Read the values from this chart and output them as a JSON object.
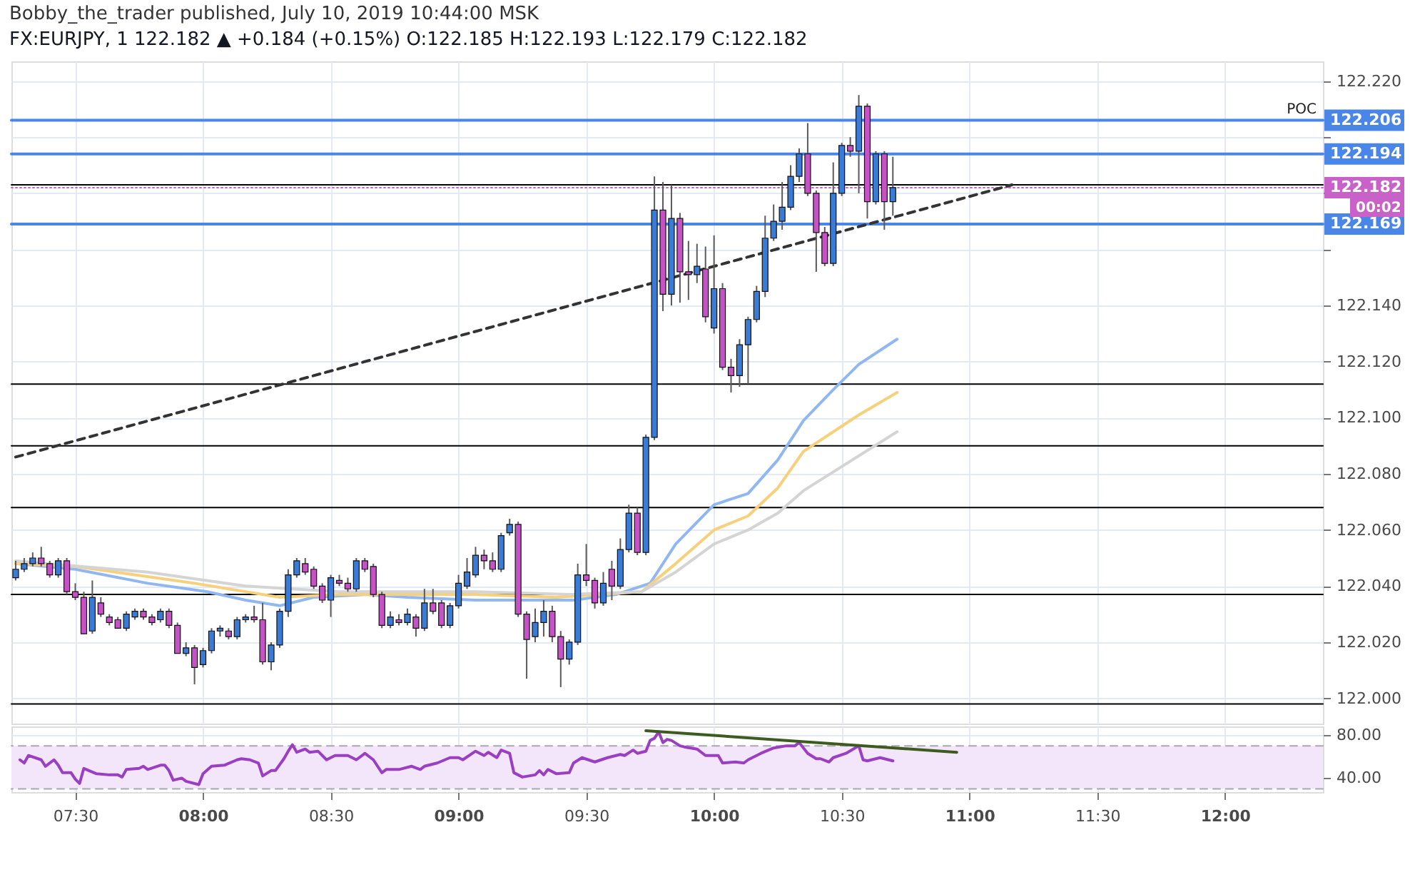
{
  "chart_data": [
    {
      "type": "candlestick",
      "title": "Bobby_the_trader published, July 10, 2019 10:44:00 MSK",
      "subtitle": "FX:EURJPY, 1  122.182 ▲ +0.184 (+0.15%) O:122.185 H:122.193 L:122.179 C:122.182",
      "x": [
        "2019-07-10T07:16",
        "2019-07-10T07:18",
        "2019-07-10T07:20",
        "2019-07-10T07:22",
        "2019-07-10T07:24",
        "2019-07-10T07:26",
        "2019-07-10T07:28",
        "2019-07-10T07:30",
        "2019-07-10T07:32",
        "2019-07-10T07:34",
        "2019-07-10T07:36",
        "2019-07-10T07:38",
        "2019-07-10T07:40",
        "2019-07-10T07:42",
        "2019-07-10T07:44",
        "2019-07-10T07:46",
        "2019-07-10T07:48",
        "2019-07-10T07:50",
        "2019-07-10T07:52",
        "2019-07-10T07:54",
        "2019-07-10T07:56",
        "2019-07-10T07:58",
        "2019-07-10T08:00",
        "2019-07-10T08:02",
        "2019-07-10T08:04",
        "2019-07-10T08:06",
        "2019-07-10T08:08",
        "2019-07-10T08:10",
        "2019-07-10T08:12",
        "2019-07-10T08:14",
        "2019-07-10T08:16",
        "2019-07-10T08:18",
        "2019-07-10T08:20",
        "2019-07-10T08:22",
        "2019-07-10T08:24",
        "2019-07-10T08:26",
        "2019-07-10T08:28",
        "2019-07-10T08:30",
        "2019-07-10T08:32",
        "2019-07-10T08:34",
        "2019-07-10T08:36",
        "2019-07-10T08:38",
        "2019-07-10T08:40",
        "2019-07-10T08:42",
        "2019-07-10T08:44",
        "2019-07-10T08:46",
        "2019-07-10T08:48",
        "2019-07-10T08:50",
        "2019-07-10T08:52",
        "2019-07-10T08:54",
        "2019-07-10T08:56",
        "2019-07-10T08:58",
        "2019-07-10T09:00",
        "2019-07-10T09:02",
        "2019-07-10T09:04",
        "2019-07-10T09:06",
        "2019-07-10T09:08",
        "2019-07-10T09:10",
        "2019-07-10T09:12",
        "2019-07-10T09:14",
        "2019-07-10T09:16",
        "2019-07-10T09:18",
        "2019-07-10T09:20",
        "2019-07-10T09:22",
        "2019-07-10T09:24",
        "2019-07-10T09:26",
        "2019-07-10T09:28",
        "2019-07-10T09:30",
        "2019-07-10T09:32",
        "2019-07-10T09:34",
        "2019-07-10T09:36",
        "2019-07-10T09:38",
        "2019-07-10T09:40",
        "2019-07-10T09:42",
        "2019-07-10T09:44",
        "2019-07-10T09:46",
        "2019-07-10T09:48",
        "2019-07-10T09:50",
        "2019-07-10T09:52",
        "2019-07-10T09:54",
        "2019-07-10T09:56",
        "2019-07-10T09:58",
        "2019-07-10T10:00",
        "2019-07-10T10:02",
        "2019-07-10T10:04",
        "2019-07-10T10:06",
        "2019-07-10T10:08",
        "2019-07-10T10:10",
        "2019-07-10T10:12",
        "2019-07-10T10:14",
        "2019-07-10T10:16",
        "2019-07-10T10:18",
        "2019-07-10T10:20",
        "2019-07-10T10:22",
        "2019-07-10T10:24",
        "2019-07-10T10:26",
        "2019-07-10T10:28",
        "2019-07-10T10:30",
        "2019-07-10T10:32",
        "2019-07-10T10:34",
        "2019-07-10T10:36",
        "2019-07-10T10:38",
        "2019-07-10T10:40",
        "2019-07-10T10:42"
      ],
      "ohlc": [
        [
          122.043,
          122.049,
          122.042,
          122.046
        ],
        [
          122.046,
          122.05,
          122.045,
          122.048
        ],
        [
          122.048,
          122.052,
          122.047,
          122.05
        ],
        [
          122.05,
          122.054,
          122.047,
          122.048
        ],
        [
          122.048,
          122.049,
          122.043,
          122.044
        ],
        [
          122.044,
          122.05,
          122.043,
          122.049
        ],
        [
          122.049,
          122.05,
          122.037,
          122.038
        ],
        [
          122.038,
          122.041,
          122.035,
          122.036
        ],
        [
          122.036,
          122.038,
          122.023,
          122.023
        ],
        [
          122.024,
          122.042,
          122.023,
          122.036
        ],
        [
          122.034,
          122.036,
          122.029,
          122.03
        ],
        [
          122.029,
          122.03,
          122.026,
          122.027
        ],
        [
          122.028,
          122.029,
          122.025,
          122.025
        ],
        [
          122.025,
          122.031,
          122.024,
          122.03
        ],
        [
          122.029,
          122.032,
          122.028,
          122.031
        ],
        [
          122.031,
          122.032,
          122.028,
          122.029
        ],
        [
          122.029,
          122.03,
          122.026,
          122.027
        ],
        [
          122.028,
          122.032,
          122.027,
          122.031
        ],
        [
          122.031,
          122.032,
          122.025,
          122.026
        ],
        [
          122.026,
          122.027,
          122.016,
          122.016
        ],
        [
          122.016,
          122.02,
          122.015,
          122.018
        ],
        [
          122.018,
          122.019,
          122.005,
          122.011
        ],
        [
          122.012,
          122.018,
          122.011,
          122.017
        ],
        [
          122.017,
          122.025,
          122.016,
          122.024
        ],
        [
          122.024,
          122.026,
          122.022,
          122.025
        ],
        [
          122.024,
          122.025,
          122.021,
          122.022
        ],
        [
          122.022,
          122.029,
          122.021,
          122.028
        ],
        [
          122.028,
          122.03,
          122.027,
          122.029
        ],
        [
          122.029,
          122.033,
          122.027,
          122.028
        ],
        [
          122.028,
          122.034,
          122.012,
          122.013
        ],
        [
          122.013,
          122.02,
          122.01,
          122.019
        ],
        [
          122.019,
          122.032,
          122.018,
          122.031
        ],
        [
          122.031,
          122.046,
          122.029,
          122.044
        ],
        [
          122.044,
          122.05,
          122.043,
          122.049
        ],
        [
          122.048,
          122.05,
          122.044,
          122.045
        ],
        [
          122.046,
          122.047,
          122.039,
          122.04
        ],
        [
          122.04,
          122.041,
          122.034,
          122.035
        ],
        [
          122.035,
          122.044,
          122.029,
          122.043
        ],
        [
          122.042,
          122.044,
          122.04,
          122.041
        ],
        [
          122.041,
          122.043,
          122.038,
          122.039
        ],
        [
          122.039,
          122.05,
          122.038,
          122.049
        ],
        [
          122.049,
          122.05,
          122.045,
          122.046
        ],
        [
          122.047,
          122.048,
          122.036,
          122.037
        ],
        [
          122.037,
          122.038,
          122.025,
          122.026
        ],
        [
          122.026,
          122.031,
          122.025,
          122.029
        ],
        [
          122.028,
          122.03,
          122.026,
          122.027
        ],
        [
          122.027,
          122.032,
          122.026,
          122.03
        ],
        [
          122.029,
          122.03,
          122.022,
          122.025
        ],
        [
          122.025,
          122.039,
          122.024,
          122.034
        ],
        [
          122.034,
          122.039,
          122.03,
          122.031
        ],
        [
          122.034,
          122.035,
          122.025,
          122.026
        ],
        [
          122.026,
          122.034,
          122.025,
          122.033
        ],
        [
          122.033,
          122.044,
          122.032,
          122.041
        ],
        [
          122.04,
          122.05,
          122.039,
          122.045
        ],
        [
          122.044,
          122.054,
          122.043,
          122.051
        ],
        [
          122.051,
          122.053,
          122.046,
          122.049
        ],
        [
          122.049,
          122.052,
          122.045,
          122.046
        ],
        [
          122.046,
          122.059,
          122.045,
          122.058
        ],
        [
          122.059,
          122.064,
          122.058,
          122.062
        ],
        [
          122.062,
          122.063,
          122.029,
          122.03
        ],
        [
          122.03,
          122.031,
          122.007,
          122.021
        ],
        [
          122.022,
          122.032,
          122.02,
          122.027
        ],
        [
          122.027,
          122.035,
          122.022,
          122.031
        ],
        [
          122.031,
          122.033,
          122.02,
          122.022
        ],
        [
          122.022,
          122.024,
          122.004,
          122.014
        ],
        [
          122.014,
          122.021,
          122.012,
          122.02
        ],
        [
          122.02,
          122.048,
          122.019,
          122.044
        ],
        [
          122.044,
          122.055,
          122.04,
          122.042
        ],
        [
          122.042,
          122.043,
          122.032,
          122.034
        ],
        [
          122.034,
          122.045,
          122.033,
          122.041
        ],
        [
          122.046,
          122.049,
          122.035,
          122.04
        ],
        [
          122.04,
          122.057,
          122.039,
          122.053
        ],
        [
          122.053,
          122.069,
          122.052,
          122.066
        ],
        [
          122.066,
          122.068,
          122.051,
          122.052
        ],
        [
          122.052,
          122.094,
          122.051,
          122.093
        ],
        [
          122.093,
          122.186,
          122.092,
          122.174
        ],
        [
          122.174,
          122.184,
          122.138,
          122.144
        ],
        [
          122.144,
          122.183,
          122.14,
          122.171
        ],
        [
          122.171,
          122.173,
          122.141,
          122.152
        ],
        [
          122.152,
          122.163,
          122.142,
          122.151
        ],
        [
          122.151,
          122.162,
          122.148,
          122.154
        ],
        [
          122.153,
          122.161,
          122.134,
          122.136
        ],
        [
          122.132,
          122.165,
          122.13,
          122.146
        ],
        [
          122.146,
          122.148,
          122.117,
          122.118
        ],
        [
          122.118,
          122.121,
          122.109,
          122.115
        ],
        [
          122.115,
          122.128,
          122.111,
          122.126
        ],
        [
          122.126,
          122.136,
          122.112,
          122.135
        ],
        [
          122.135,
          122.147,
          122.134,
          122.145
        ],
        [
          122.145,
          122.172,
          122.143,
          122.164
        ],
        [
          122.164,
          122.176,
          122.163,
          122.17
        ],
        [
          122.17,
          122.184,
          122.167,
          122.175
        ],
        [
          122.175,
          122.19,
          122.174,
          122.186
        ],
        [
          122.186,
          122.196,
          122.184,
          122.194
        ],
        [
          122.194,
          122.205,
          122.179,
          122.18
        ],
        [
          122.18,
          122.181,
          122.152,
          122.166
        ],
        [
          122.166,
          122.168,
          122.154,
          122.155
        ],
        [
          122.155,
          122.191,
          122.154,
          122.18
        ],
        [
          122.18,
          122.198,
          122.179,
          122.197
        ],
        [
          122.197,
          122.2,
          122.193,
          122.195
        ],
        [
          122.195,
          122.215,
          122.18,
          122.211
        ],
        [
          122.211,
          122.212,
          122.171,
          122.177
        ],
        [
          122.177,
          122.195,
          122.176,
          122.194
        ],
        [
          122.194,
          122.195,
          122.167,
          122.177
        ],
        [
          122.177,
          122.193,
          122.172,
          122.182
        ]
      ],
      "colors": [
        "#3a7bd5",
        "#3a7bd5",
        "#3a7bd5",
        "#c653c6",
        "#c653c6",
        "#3a7bd5",
        "#c653c6",
        "#c653c6",
        "#c653c6",
        "#3a7bd5",
        "#c653c6",
        "#c653c6",
        "#c653c6",
        "#3a7bd5",
        "#3a7bd5",
        "#c653c6",
        "#c653c6",
        "#3a7bd5",
        "#c653c6",
        "#c653c6",
        "#3a7bd5",
        "#c653c6",
        "#3a7bd5",
        "#3a7bd5",
        "#3a7bd5",
        "#c653c6",
        "#3a7bd5",
        "#3a7bd5",
        "#c653c6",
        "#c653c6",
        "#3a7bd5",
        "#3a7bd5",
        "#3a7bd5",
        "#3a7bd5",
        "#c653c6",
        "#c653c6",
        "#c653c6",
        "#3a7bd5",
        "#c653c6",
        "#c653c6",
        "#3a7bd5",
        "#c653c6",
        "#c653c6",
        "#c653c6",
        "#3a7bd5",
        "#c653c6",
        "#3a7bd5",
        "#c653c6",
        "#3a7bd5",
        "#c653c6",
        "#c653c6",
        "#3a7bd5",
        "#3a7bd5",
        "#3a7bd5",
        "#3a7bd5",
        "#c653c6",
        "#c653c6",
        "#3a7bd5",
        "#3a7bd5",
        "#c653c6",
        "#c653c6",
        "#3a7bd5",
        "#3a7bd5",
        "#c653c6",
        "#c653c6",
        "#3a7bd5",
        "#3a7bd5",
        "#c653c6",
        "#c653c6",
        "#3a7bd5",
        "#c653c6",
        "#3a7bd5",
        "#3a7bd5",
        "#c653c6",
        "#3a7bd5",
        "#3a7bd5",
        "#c653c6",
        "#3a7bd5",
        "#c653c6",
        "#c653c6",
        "#3a7bd5",
        "#c653c6",
        "#3a7bd5",
        "#c653c6",
        "#c653c6",
        "#3a7bd5",
        "#3a7bd5",
        "#3a7bd5",
        "#3a7bd5",
        "#3a7bd5",
        "#3a7bd5",
        "#3a7bd5",
        "#3a7bd5",
        "#c653c6",
        "#c653c6",
        "#c653c6",
        "#3a7bd5",
        "#3a7bd5",
        "#c653c6",
        "#3a7bd5",
        "#c653c6",
        "#3a7bd5",
        "#c653c6",
        "#3a7bd5"
      ],
      "series": [
        {
          "type": "line",
          "color": "#91b7f2",
          "x": [
            "2019-07-10T07:16",
            "2019-07-10T07:30",
            "2019-07-10T07:47",
            "2019-07-10T08:01",
            "2019-07-10T08:10",
            "2019-07-10T08:18",
            "2019-07-10T08:26",
            "2019-07-10T08:38",
            "2019-07-10T08:48",
            "2019-07-10T09:04",
            "2019-07-10T09:27",
            "2019-07-10T09:37",
            "2019-07-10T09:45",
            "2019-07-10T09:51",
            "2019-07-10T10:00",
            "2019-07-10T10:08",
            "2019-07-10T10:15",
            "2019-07-10T10:21",
            "2019-07-10T10:28",
            "2019-07-10T10:34",
            "2019-07-10T10:43"
          ],
          "values": [
            122.048,
            122.046,
            122.041,
            122.038,
            122.035,
            122.033,
            122.036,
            122.037,
            122.036,
            122.035,
            122.035,
            122.037,
            122.041,
            122.055,
            122.069,
            122.073,
            122.085,
            122.099,
            122.11,
            122.119,
            122.128
          ]
        },
        {
          "type": "line",
          "color": "#f6d07a",
          "x": [
            "2019-07-10T07:16",
            "2019-07-10T07:30",
            "2019-07-10T07:58",
            "2019-07-10T08:18",
            "2019-07-10T08:32",
            "2019-07-10T09:04",
            "2019-07-10T09:23",
            "2019-07-10T09:43",
            "2019-07-10T09:51",
            "2019-07-10T10:00",
            "2019-07-10T10:08",
            "2019-07-10T10:15",
            "2019-07-10T10:21",
            "2019-07-10T10:34",
            "2019-07-10T10:43"
          ],
          "values": [
            122.048,
            122.047,
            122.041,
            122.036,
            122.037,
            122.037,
            122.036,
            122.038,
            122.048,
            122.06,
            122.065,
            122.075,
            122.088,
            122.101,
            122.109
          ]
        },
        {
          "type": "line",
          "color": "#d4d4d4",
          "x": [
            "2019-07-10T07:16",
            "2019-07-10T07:47",
            "2019-07-10T08:10",
            "2019-07-10T08:32",
            "2019-07-10T09:04",
            "2019-07-10T09:26",
            "2019-07-10T09:43",
            "2019-07-10T09:51",
            "2019-07-10T10:00",
            "2019-07-10T10:08",
            "2019-07-10T10:15",
            "2019-07-10T10:21",
            "2019-07-10T10:43"
          ],
          "values": [
            122.049,
            122.045,
            122.04,
            122.038,
            122.038,
            122.037,
            122.038,
            122.045,
            122.055,
            122.06,
            122.066,
            122.074,
            122.095
          ]
        },
        {
          "type": "line",
          "color": "#333333",
          "line_style": "dashed",
          "x": [
            "2019-07-10T07:16",
            "2019-07-10T11:10"
          ],
          "values": [
            122.086,
            122.183
          ]
        }
      ],
      "xlim": [
        "2019-07-10T07:15",
        "2019-07-10T12:23"
      ],
      "xticks": [
        {
          "value": "2019-07-10T07:30",
          "label": null
        },
        {
          "value": "2019-07-10T08:00",
          "label": null
        },
        {
          "value": "2019-07-10T08:30",
          "label": null
        },
        {
          "value": "2019-07-10T09:00",
          "label": null
        },
        {
          "value": "2019-07-10T09:30",
          "label": null
        },
        {
          "value": "2019-07-10T10:00",
          "label": null
        },
        {
          "value": "2019-07-10T10:30",
          "label": null
        },
        {
          "value": "2019-07-10T11:00",
          "label": null
        },
        {
          "value": "2019-07-10T11:30",
          "label": null
        },
        {
          "value": "2019-07-10T12:00",
          "label": null
        }
      ],
      "ylim": [
        121.991,
        122.227
      ],
      "yticks": [
        {
          "value": 122.0,
          "label": "122.000"
        },
        {
          "value": 122.02,
          "label": "122.020"
        },
        {
          "value": 122.04,
          "label": "122.040"
        },
        {
          "value": 122.06,
          "label": "122.060"
        },
        {
          "value": 122.08,
          "label": "122.080"
        },
        {
          "value": 122.1,
          "label": "122.100"
        },
        {
          "value": 122.12,
          "label": "122.120"
        },
        {
          "value": 122.14,
          "label": "122.140"
        },
        {
          "value": 122.16,
          "label": null
        },
        {
          "value": 122.18,
          "label": null
        },
        {
          "value": 122.2,
          "label": null
        },
        {
          "value": 122.22,
          "label": "122.220"
        }
      ],
      "ref_lines": [
        {
          "axis": "y",
          "value": 122.183,
          "color": "#000000"
        },
        {
          "axis": "y",
          "value": 122.112,
          "color": "#000000"
        },
        {
          "axis": "y",
          "value": 122.09,
          "color": "#000000"
        },
        {
          "axis": "y",
          "value": 122.068,
          "color": "#000000"
        },
        {
          "axis": "y",
          "value": 122.037,
          "color": "#000000"
        },
        {
          "axis": "y",
          "value": 121.998,
          "color": "#000000"
        },
        {
          "axis": "y",
          "value": 122.206,
          "label": "122.206",
          "color": "#4a86e8"
        },
        {
          "axis": "y",
          "value": 122.194,
          "label": "122.194",
          "color": "#4a86e8"
        },
        {
          "axis": "y",
          "value": 122.169,
          "label": "122.169",
          "color": "#4a86e8"
        },
        {
          "axis": "y",
          "value": 122.182,
          "label": "122.182",
          "color": "#c862c8",
          "line_style": "dotted"
        }
      ],
      "annotations": [
        {
          "text": "POC",
          "x": "2019-07-10T12:18",
          "y": 122.206
        },
        "00:02"
      ],
      "grid": true,
      "tick_labels": "y"
    },
    {
      "type": "line",
      "series": [
        {
          "color": "#9a3fc2",
          "x": [
            "2019-07-10T07:17",
            "2019-07-10T07:18",
            "2019-07-10T07:19",
            "2019-07-10T07:22",
            "2019-07-10T07:23",
            "2019-07-10T07:25",
            "2019-07-10T07:26",
            "2019-07-10T07:27",
            "2019-07-10T07:29",
            "2019-07-10T07:30",
            "2019-07-10T07:31",
            "2019-07-10T07:32",
            "2019-07-10T07:35",
            "2019-07-10T07:38",
            "2019-07-10T07:40",
            "2019-07-10T07:41",
            "2019-07-10T07:42",
            "2019-07-10T07:45",
            "2019-07-10T07:46",
            "2019-07-10T07:47",
            "2019-07-10T07:50",
            "2019-07-10T07:51",
            "2019-07-10T07:52",
            "2019-07-10T07:53",
            "2019-07-10T07:55",
            "2019-07-10T07:56",
            "2019-07-10T07:59",
            "2019-07-10T08:00",
            "2019-07-10T08:02",
            "2019-07-10T08:05",
            "2019-07-10T08:08",
            "2019-07-10T08:09",
            "2019-07-10T08:11",
            "2019-07-10T08:13",
            "2019-07-10T08:14",
            "2019-07-10T08:16",
            "2019-07-10T08:17",
            "2019-07-10T08:19",
            "2019-07-10T08:20",
            "2019-07-10T08:21",
            "2019-07-10T08:22",
            "2019-07-10T08:24",
            "2019-07-10T08:25",
            "2019-07-10T08:27",
            "2019-07-10T08:29",
            "2019-07-10T08:31",
            "2019-07-10T08:34",
            "2019-07-10T08:36",
            "2019-07-10T08:38",
            "2019-07-10T08:40",
            "2019-07-10T08:42",
            "2019-07-10T08:43",
            "2019-07-10T08:46",
            "2019-07-10T08:49",
            "2019-07-10T08:51",
            "2019-07-10T08:52",
            "2019-07-10T08:55",
            "2019-07-10T08:58",
            "2019-07-10T09:00",
            "2019-07-10T09:01",
            "2019-07-10T09:04",
            "2019-07-10T09:06",
            "2019-07-10T09:07",
            "2019-07-10T09:09",
            "2019-07-10T09:10",
            "2019-07-10T09:12",
            "2019-07-10T09:13",
            "2019-07-10T09:15",
            "2019-07-10T09:18",
            "2019-07-10T09:19",
            "2019-07-10T09:20",
            "2019-07-10T09:21",
            "2019-07-10T09:23",
            "2019-07-10T09:26",
            "2019-07-10T09:27",
            "2019-07-10T09:29",
            "2019-07-10T09:32",
            "2019-07-10T09:35",
            "2019-07-10T09:38",
            "2019-07-10T09:39",
            "2019-07-10T09:41",
            "2019-07-10T09:42",
            "2019-07-10T09:44",
            "2019-07-10T09:45",
            "2019-07-10T09:46",
            "2019-07-10T09:47",
            "2019-07-10T09:48",
            "2019-07-10T09:49",
            "2019-07-10T09:50",
            "2019-07-10T09:52",
            "2019-07-10T09:53",
            "2019-07-10T09:56",
            "2019-07-10T09:58",
            "2019-07-10T10:01",
            "2019-07-10T10:02",
            "2019-07-10T10:05",
            "2019-07-10T10:07",
            "2019-07-10T10:08",
            "2019-07-10T10:11",
            "2019-07-10T10:14",
            "2019-07-10T10:17",
            "2019-07-10T10:19",
            "2019-07-10T10:20",
            "2019-07-10T10:22",
            "2019-07-10T10:24",
            "2019-07-10T10:25",
            "2019-07-10T10:27",
            "2019-07-10T10:28",
            "2019-07-10T10:31",
            "2019-07-10T10:34",
            "2019-07-10T10:35",
            "2019-07-10T10:36",
            "2019-07-10T10:38",
            "2019-07-10T10:39",
            "2019-07-10T10:41",
            "2019-07-10T10:42"
          ],
          "values": [
            57,
            54,
            61,
            57,
            51,
            57,
            52,
            45,
            45,
            39,
            35,
            49,
            44,
            43,
            43,
            41,
            48,
            49,
            51,
            48,
            52,
            52,
            47,
            38,
            40,
            37,
            34,
            44,
            51,
            52,
            57,
            58,
            57,
            54,
            42,
            47,
            47,
            58,
            65,
            71,
            64,
            67,
            64,
            65,
            57,
            61,
            61,
            57,
            63,
            57,
            45,
            48,
            48,
            51,
            48,
            51,
            54,
            59,
            59,
            57,
            65,
            61,
            64,
            59,
            66,
            63,
            45,
            41,
            43,
            47,
            43,
            48,
            44,
            45,
            54,
            59,
            55,
            59,
            62,
            61,
            66,
            63,
            65,
            75,
            77,
            83,
            73,
            76,
            75,
            70,
            69,
            67,
            61,
            61,
            54,
            55,
            54,
            57,
            63,
            68,
            70,
            70,
            73,
            63,
            58,
            58,
            55,
            59,
            63,
            70,
            57,
            56,
            58,
            59,
            57,
            56
          ]
        },
        {
          "color": "#3d5a1f",
          "x": [
            "2019-07-10T09:44",
            "2019-07-10T10:57"
          ],
          "values": [
            84,
            64
          ]
        }
      ],
      "xlim": [
        "2019-07-10T07:15",
        "2019-07-10T12:23"
      ],
      "xticks": [
        {
          "value": "2019-07-10T07:30",
          "label": "07:30"
        },
        {
          "value": "2019-07-10T08:00",
          "label": "08:00"
        },
        {
          "value": "2019-07-10T08:30",
          "label": "08:30"
        },
        {
          "value": "2019-07-10T09:00",
          "label": "09:00"
        },
        {
          "value": "2019-07-10T09:30",
          "label": "09:30"
        },
        {
          "value": "2019-07-10T10:00",
          "label": "10:00"
        },
        {
          "value": "2019-07-10T10:30",
          "label": "10:30"
        },
        {
          "value": "2019-07-10T11:00",
          "label": "11:00"
        },
        {
          "value": "2019-07-10T11:30",
          "label": "11:30"
        },
        {
          "value": "2019-07-10T12:00",
          "label": "12:00"
        }
      ],
      "ylim": [
        27,
        88
      ],
      "yticks": [
        {
          "value": 40,
          "label": "40.00"
        },
        {
          "value": 80,
          "label": "80.00"
        }
      ],
      "bands": [
        {
          "axis": "y",
          "from": 30,
          "to": 70,
          "color": "#f3e6fb"
        }
      ],
      "ref_lines": [
        {
          "axis": "y",
          "value": 70,
          "color": "#a7a7b0",
          "line_style": "dashed"
        },
        {
          "axis": "y",
          "value": 30,
          "color": "#a7a7b0",
          "line_style": "dashed"
        }
      ],
      "grid": true
    }
  ]
}
